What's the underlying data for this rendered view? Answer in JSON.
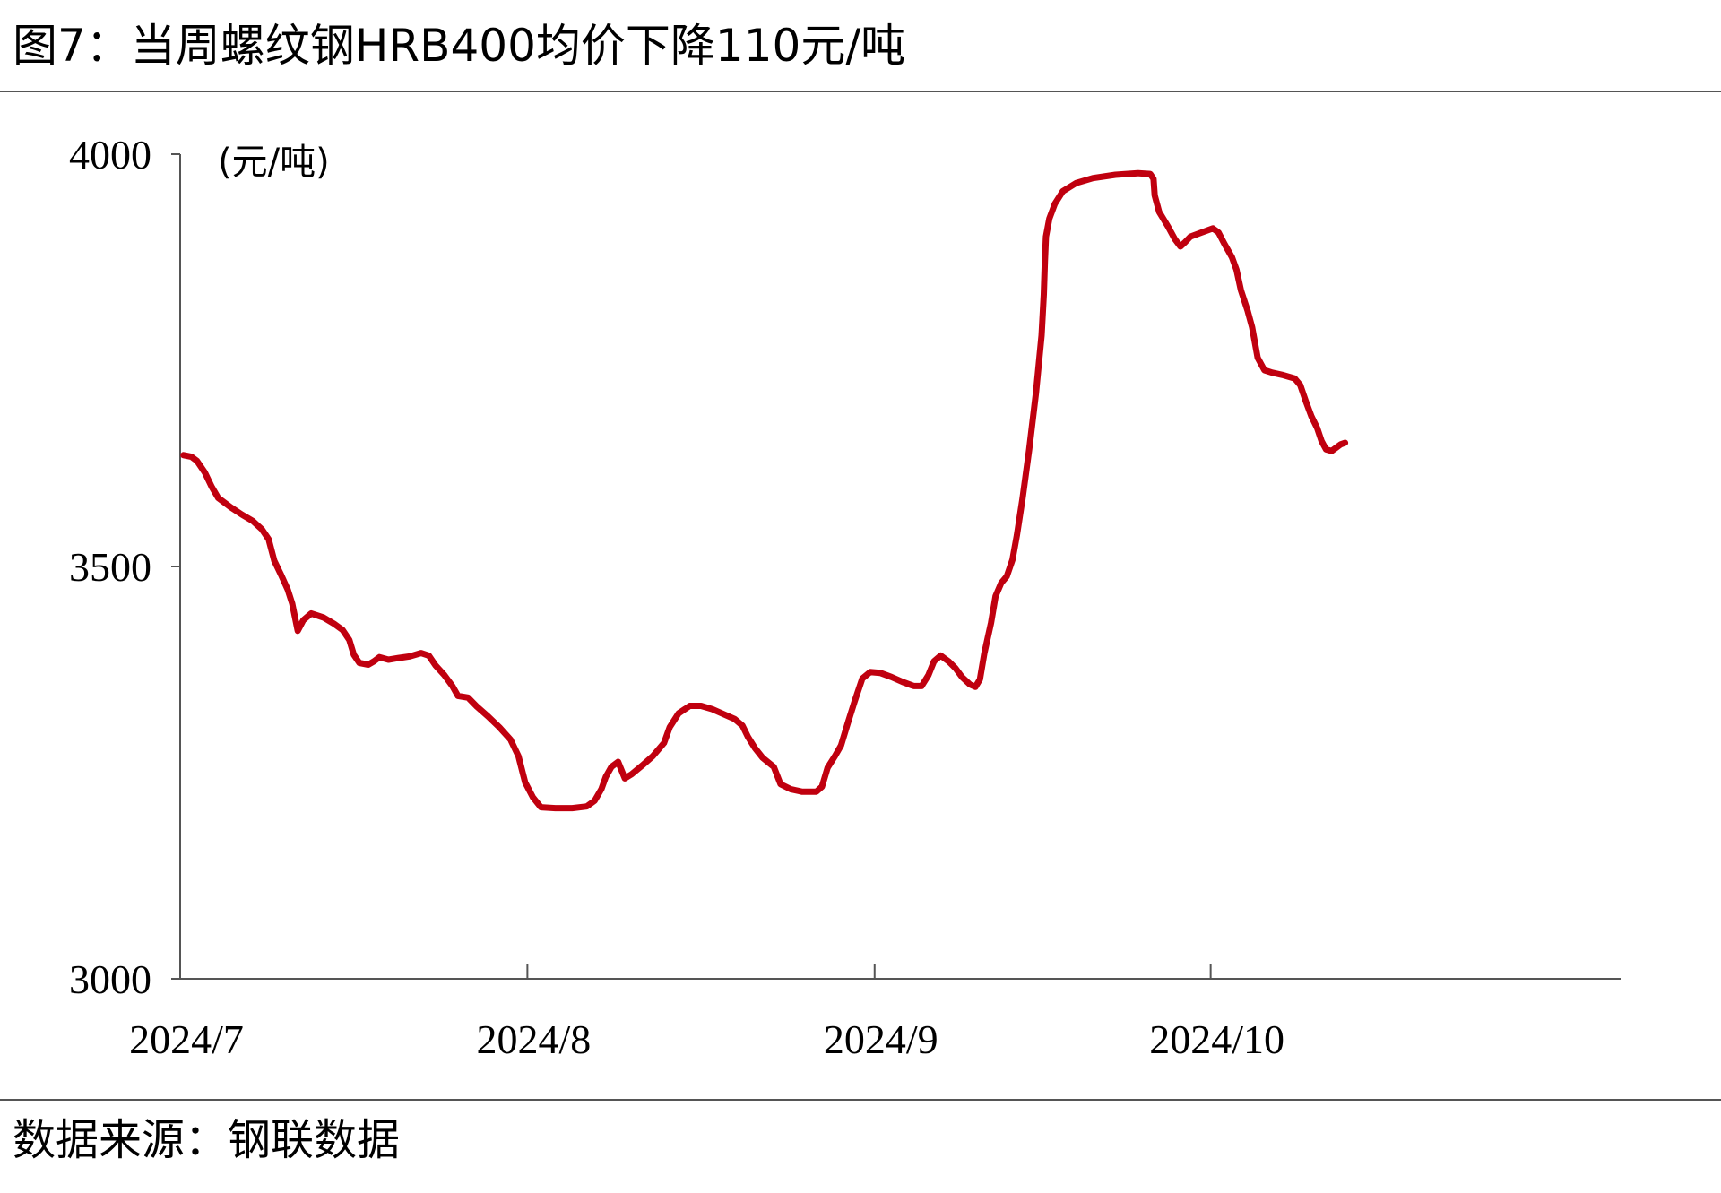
{
  "header": {
    "figure_title": "图7：当周螺纹钢HRB400均价下降110元/吨"
  },
  "footer": {
    "source_note": "数据来源：钢联数据"
  },
  "colors": {
    "series_line": "#C0000F",
    "axis": "#555555",
    "text": "#000000"
  },
  "chart_data": {
    "type": "line",
    "title": "当周螺纹钢HRB400均价下降110元/吨",
    "unit_label": "(元/吨)",
    "xlabel": "",
    "ylabel": "",
    "ylim": [
      3000,
      4000
    ],
    "y_ticks": [
      "3000",
      "3500",
      "4000"
    ],
    "x_ticks": [
      {
        "label": "2024/7",
        "x": 0
      },
      {
        "label": "2024/8",
        "x": 31
      },
      {
        "label": "2024/9",
        "x": 62
      },
      {
        "label": "2024/10",
        "x": 92
      }
    ],
    "x_range": [
      0,
      103
    ],
    "grid": false,
    "legend": "none",
    "series": [
      {
        "points": [
          [
            0.3,
            3635
          ],
          [
            1.0,
            3633
          ],
          [
            1.5,
            3628
          ],
          [
            2.2,
            3614
          ],
          [
            2.8,
            3597
          ],
          [
            3.4,
            3583
          ],
          [
            4.5,
            3572
          ],
          [
            5.5,
            3563
          ],
          [
            6.5,
            3555
          ],
          [
            7.3,
            3545
          ],
          [
            7.9,
            3533
          ],
          [
            8.4,
            3507
          ],
          [
            9.0,
            3490
          ],
          [
            9.6,
            3472
          ],
          [
            10.0,
            3455
          ],
          [
            10.5,
            3422
          ],
          [
            11.0,
            3435
          ],
          [
            11.7,
            3443
          ],
          [
            12.8,
            3438
          ],
          [
            13.8,
            3430
          ],
          [
            14.5,
            3423
          ],
          [
            15.1,
            3411
          ],
          [
            15.5,
            3393
          ],
          [
            16.0,
            3383
          ],
          [
            16.8,
            3381
          ],
          [
            17.3,
            3385
          ],
          [
            17.8,
            3390
          ],
          [
            18.6,
            3387
          ],
          [
            19.5,
            3389
          ],
          [
            20.5,
            3391
          ],
          [
            21.5,
            3395
          ],
          [
            22.2,
            3392
          ],
          [
            22.8,
            3380
          ],
          [
            23.6,
            3368
          ],
          [
            24.3,
            3355
          ],
          [
            24.8,
            3343
          ],
          [
            25.7,
            3341
          ],
          [
            26.5,
            3330
          ],
          [
            27.5,
            3318
          ],
          [
            28.5,
            3305
          ],
          [
            29.5,
            3290
          ],
          [
            30.2,
            3270
          ],
          [
            30.8,
            3238
          ],
          [
            31.5,
            3220
          ],
          [
            32.2,
            3208
          ],
          [
            33.5,
            3207
          ],
          [
            35.0,
            3207
          ],
          [
            36.3,
            3209
          ],
          [
            37.0,
            3216
          ],
          [
            37.6,
            3230
          ],
          [
            38.0,
            3245
          ],
          [
            38.5,
            3257
          ],
          [
            39.1,
            3263
          ],
          [
            39.7,
            3243
          ],
          [
            40.3,
            3248
          ],
          [
            41.2,
            3258
          ],
          [
            42.2,
            3270
          ],
          [
            43.2,
            3286
          ],
          [
            43.7,
            3305
          ],
          [
            44.5,
            3322
          ],
          [
            45.5,
            3331
          ],
          [
            46.5,
            3331
          ],
          [
            47.5,
            3327
          ],
          [
            48.5,
            3321
          ],
          [
            49.5,
            3315
          ],
          [
            50.2,
            3307
          ],
          [
            50.7,
            3293
          ],
          [
            51.3,
            3280
          ],
          [
            52.0,
            3268
          ],
          [
            53.0,
            3257
          ],
          [
            53.6,
            3236
          ],
          [
            54.5,
            3230
          ],
          [
            55.5,
            3227
          ],
          [
            56.8,
            3227
          ],
          [
            57.3,
            3233
          ],
          [
            57.8,
            3256
          ],
          [
            58.5,
            3271
          ],
          [
            59.0,
            3283
          ],
          [
            59.6,
            3310
          ],
          [
            60.2,
            3336
          ],
          [
            60.9,
            3364
          ],
          [
            61.6,
            3372
          ],
          [
            62.5,
            3371
          ],
          [
            63.5,
            3366
          ],
          [
            64.5,
            3360
          ],
          [
            65.5,
            3355
          ],
          [
            66.2,
            3355
          ],
          [
            66.8,
            3368
          ],
          [
            67.3,
            3385
          ],
          [
            67.9,
            3392
          ],
          [
            68.6,
            3385
          ],
          [
            69.2,
            3377
          ],
          [
            69.8,
            3366
          ],
          [
            70.5,
            3357
          ],
          [
            71.0,
            3354
          ],
          [
            71.4,
            3363
          ],
          [
            71.8,
            3395
          ],
          [
            72.4,
            3432
          ],
          [
            72.8,
            3464
          ],
          [
            73.3,
            3480
          ],
          [
            73.8,
            3488
          ],
          [
            74.3,
            3508
          ],
          [
            74.7,
            3538
          ],
          [
            75.2,
            3582
          ],
          [
            75.8,
            3642
          ],
          [
            76.4,
            3710
          ],
          [
            76.9,
            3780
          ],
          [
            77.1,
            3830
          ],
          [
            77.2,
            3870
          ],
          [
            77.3,
            3900
          ],
          [
            77.6,
            3922
          ],
          [
            78.1,
            3940
          ],
          [
            78.8,
            3955
          ],
          [
            80.0,
            3965
          ],
          [
            81.5,
            3971
          ],
          [
            83.5,
            3975
          ],
          [
            85.5,
            3977
          ],
          [
            86.6,
            3976
          ],
          [
            86.9,
            3970
          ],
          [
            87.0,
            3950
          ],
          [
            87.4,
            3930
          ],
          [
            88.2,
            3912
          ],
          [
            88.8,
            3897
          ],
          [
            89.3,
            3888
          ],
          [
            89.7,
            3893
          ],
          [
            90.2,
            3900
          ],
          [
            91.2,
            3905
          ],
          [
            92.2,
            3910
          ],
          [
            92.7,
            3905
          ],
          [
            93.2,
            3892
          ],
          [
            93.9,
            3875
          ],
          [
            94.3,
            3860
          ],
          [
            94.7,
            3835
          ],
          [
            95.3,
            3810
          ],
          [
            95.7,
            3790
          ],
          [
            96.2,
            3753
          ],
          [
            96.8,
            3738
          ],
          [
            97.5,
            3735
          ],
          [
            98.5,
            3732
          ],
          [
            99.5,
            3728
          ],
          [
            100.0,
            3720
          ],
          [
            100.5,
            3700
          ],
          [
            101.0,
            3682
          ],
          [
            101.5,
            3668
          ],
          [
            101.9,
            3652
          ],
          [
            102.3,
            3642
          ],
          [
            102.8,
            3640
          ],
          [
            103.2,
            3644
          ],
          [
            103.6,
            3648
          ],
          [
            104.0,
            3650
          ]
        ]
      }
    ]
  }
}
